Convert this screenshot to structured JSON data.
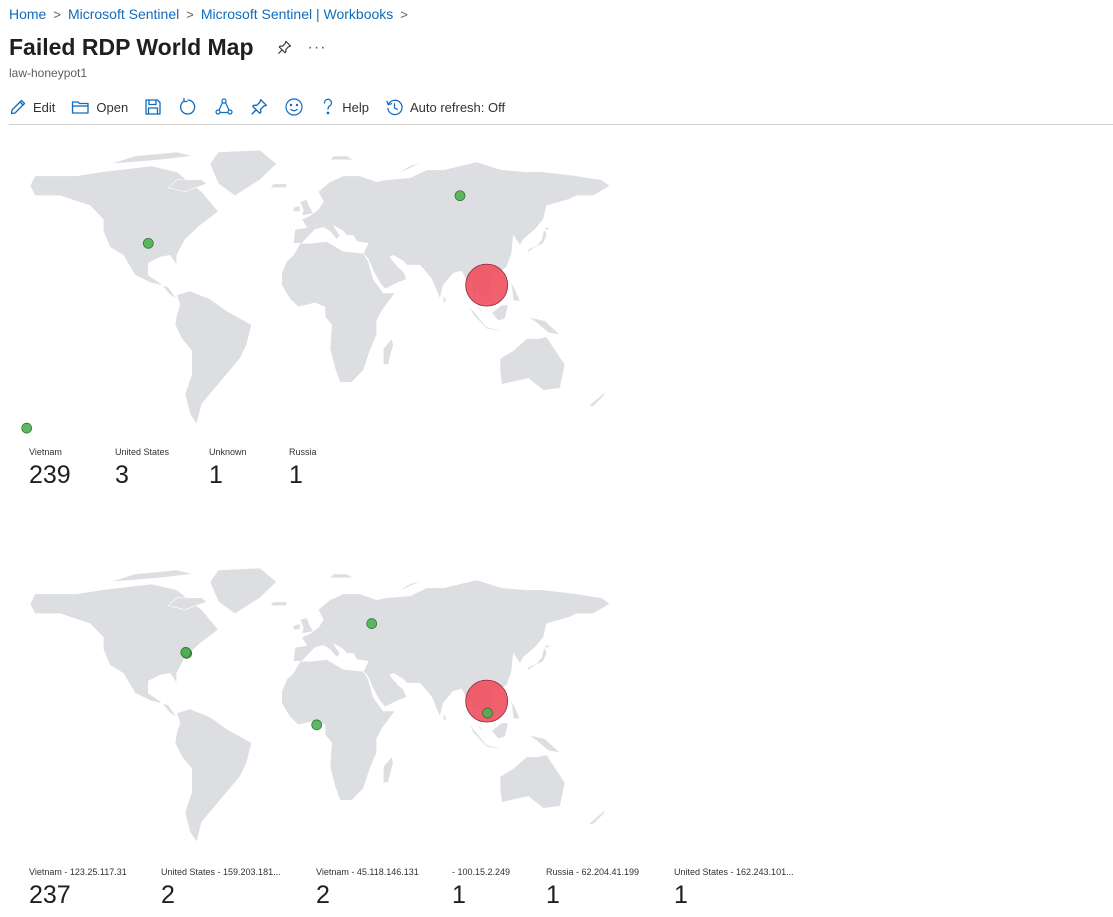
{
  "breadcrumb": {
    "items": [
      "Home",
      "Microsoft Sentinel",
      "Microsoft Sentinel | Workbooks"
    ],
    "separator": ">"
  },
  "header": {
    "title": "Failed RDP World Map",
    "subtitle": "law-honeypot1",
    "more_label": "···"
  },
  "toolbar": {
    "edit_label": "Edit",
    "open_label": "Open",
    "help_label": "Help",
    "auto_refresh_label": "Auto refresh: Off",
    "icons": [
      "edit-icon",
      "open-folder-icon",
      "save-icon",
      "refresh-icon",
      "share-icon",
      "pin-icon",
      "feedback-smiley-icon",
      "help-icon",
      "auto-refresh-clock-icon"
    ]
  },
  "colors": {
    "accent_link": "#0f6cbd",
    "land": "#dddee2",
    "point_green": "#4caf50",
    "point_red": "#ef4f5e"
  },
  "map1": {
    "tiles": [
      {
        "label": "Vietnam",
        "value": "239"
      },
      {
        "label": "United States",
        "value": "3"
      },
      {
        "label": "Unknown",
        "value": "1"
      },
      {
        "label": "Russia",
        "value": "1"
      }
    ],
    "points": [
      {
        "name": "Vietnam",
        "lat": 15,
        "lon": 106,
        "count": 239
      },
      {
        "name": "United States",
        "lat": 36,
        "lon": -97,
        "count": 3
      },
      {
        "name": "Unknown",
        "lat": -57,
        "lon": -170,
        "count": 1
      },
      {
        "name": "Russia",
        "lat": 60,
        "lon": 90,
        "count": 1
      }
    ]
  },
  "map2": {
    "tiles": [
      {
        "label": "Vietnam - 123.25.117.31",
        "value": "237"
      },
      {
        "label": "United States - 159.203.181...",
        "value": "2"
      },
      {
        "label": "Vietnam - 45.118.146.131",
        "value": "2"
      },
      {
        "label": "- 100.15.2.249",
        "value": "1"
      },
      {
        "label": "Russia - 62.204.41.199",
        "value": "1"
      },
      {
        "label": "United States - 162.243.101...",
        "value": "1"
      }
    ],
    "points": [
      {
        "name": "Vietnam - 123.25.117.31",
        "lat": 16,
        "lon": 106,
        "count": 237
      },
      {
        "name": "United States - 159.203.181...",
        "lat": 40,
        "lon": -74,
        "count": 2
      },
      {
        "name": "Vietnam - 45.118.146.131",
        "lat": 10,
        "lon": 106.5,
        "count": 2
      },
      {
        "name": "- 100.15.2.249",
        "lat": 4,
        "lon": 4,
        "count": 1
      },
      {
        "name": "Russia - 62.204.41.199",
        "lat": 55,
        "lon": 37,
        "count": 1
      },
      {
        "name": "United States - 162.243.101...",
        "lat": 40.5,
        "lon": -74.5,
        "count": 1
      }
    ]
  }
}
